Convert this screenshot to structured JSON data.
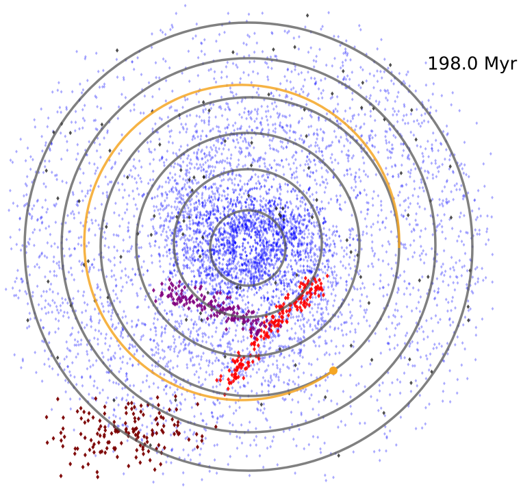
{
  "label": "198.0 Myr"
}
